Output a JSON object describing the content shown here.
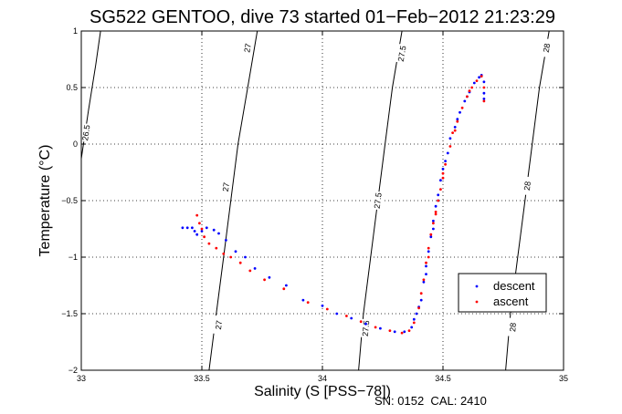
{
  "chart_data": {
    "type": "scatter",
    "title": "SG522 GENTOO, dive 73 started 01−Feb−2012 21:23:29",
    "xlabel": "Salinity (S [PSS−78])",
    "ylabel": "Temperature (°C)",
    "xlim": [
      33,
      35
    ],
    "ylim": [
      -2,
      1
    ],
    "xticks": [
      33,
      33.5,
      34,
      34.5,
      35
    ],
    "xtick_labels": [
      "33",
      "33.5",
      "34",
      "34.5",
      "35"
    ],
    "yticks": [
      -2,
      -1.5,
      -1,
      -0.5,
      0,
      0.5,
      1
    ],
    "ytick_labels": [
      "−2",
      "−1.5",
      "−1",
      "−0.5",
      "0",
      "0.5",
      "1"
    ],
    "grid": true,
    "legend_position": "lower-right",
    "footer": "SN: 0152  CAL: 2410",
    "colors": {
      "descent": "#0000ff",
      "ascent": "#ff0000",
      "contour": "#000000"
    },
    "isopycnals": [
      {
        "label": "26.5",
        "points": [
          [
            33.0,
            -0.13
          ],
          [
            33.03,
            0.3
          ],
          [
            33.06,
            0.7
          ],
          [
            33.08,
            1.0
          ]
        ],
        "label_positions": [
          [
            33.02,
            0.1
          ]
        ]
      },
      {
        "label": "27",
        "points": [
          [
            33.53,
            -2.0
          ],
          [
            33.56,
            -1.5
          ],
          [
            33.59,
            -1.0
          ],
          [
            33.62,
            -0.5
          ],
          [
            33.65,
            0.0
          ],
          [
            33.69,
            0.5
          ],
          [
            33.73,
            1.0
          ]
        ],
        "label_positions": [
          [
            33.57,
            -1.6
          ],
          [
            33.6,
            -0.38
          ],
          [
            33.69,
            0.85
          ]
        ]
      },
      {
        "label": "27.5",
        "points": [
          [
            34.15,
            -2.0
          ],
          [
            34.17,
            -1.5
          ],
          [
            34.2,
            -1.0
          ],
          [
            34.23,
            -0.5
          ],
          [
            34.26,
            0.0
          ],
          [
            34.29,
            0.5
          ],
          [
            34.33,
            1.0
          ]
        ],
        "label_positions": [
          [
            34.18,
            -1.63
          ],
          [
            34.23,
            -0.5
          ],
          [
            34.33,
            0.8
          ]
        ]
      },
      {
        "label": "28",
        "points": [
          [
            34.76,
            -2.0
          ],
          [
            34.78,
            -1.5
          ],
          [
            34.81,
            -1.0
          ],
          [
            34.84,
            -0.5
          ],
          [
            34.87,
            0.0
          ],
          [
            34.9,
            0.5
          ],
          [
            34.94,
            1.0
          ]
        ],
        "label_positions": [
          [
            34.79,
            -1.62
          ],
          [
            34.85,
            -0.37
          ],
          [
            34.93,
            0.85
          ]
        ]
      }
    ],
    "series": [
      {
        "name": "descent",
        "points": [
          [
            33.42,
            -0.74
          ],
          [
            33.44,
            -0.74
          ],
          [
            33.46,
            -0.74
          ],
          [
            33.47,
            -0.77
          ],
          [
            33.48,
            -0.8
          ],
          [
            33.5,
            -0.77
          ],
          [
            33.52,
            -0.74
          ],
          [
            33.55,
            -0.76
          ],
          [
            33.57,
            -0.79
          ],
          [
            33.6,
            -0.85
          ],
          [
            33.64,
            -0.95
          ],
          [
            33.68,
            -1.0
          ],
          [
            33.72,
            -1.1
          ],
          [
            33.78,
            -1.18
          ],
          [
            33.85,
            -1.25
          ],
          [
            33.92,
            -1.38
          ],
          [
            34.0,
            -1.43
          ],
          [
            34.06,
            -1.5
          ],
          [
            34.12,
            -1.54
          ],
          [
            34.18,
            -1.59
          ],
          [
            34.24,
            -1.63
          ],
          [
            34.3,
            -1.66
          ],
          [
            34.34,
            -1.66
          ],
          [
            34.37,
            -1.62
          ],
          [
            34.39,
            -1.5
          ],
          [
            34.41,
            -1.38
          ],
          [
            34.42,
            -1.22
          ],
          [
            34.43,
            -1.08
          ],
          [
            34.44,
            -0.95
          ],
          [
            34.45,
            -0.82
          ],
          [
            34.46,
            -0.68
          ],
          [
            34.47,
            -0.55
          ],
          [
            34.48,
            -0.45
          ],
          [
            34.49,
            -0.32
          ],
          [
            34.5,
            -0.22
          ],
          [
            34.52,
            -0.08
          ],
          [
            34.53,
            0.05
          ],
          [
            34.55,
            0.15
          ],
          [
            34.57,
            0.28
          ],
          [
            34.59,
            0.38
          ],
          [
            34.61,
            0.46
          ],
          [
            34.63,
            0.54
          ],
          [
            34.65,
            0.59
          ],
          [
            34.66,
            0.61
          ],
          [
            34.67,
            0.55
          ],
          [
            34.67,
            0.45
          ],
          [
            34.67,
            0.4
          ],
          [
            34.38,
            -1.55
          ],
          [
            34.4,
            -1.44
          ],
          [
            34.43,
            -1.15
          ],
          [
            34.46,
            -0.75
          ],
          [
            34.48,
            -0.5
          ],
          [
            34.51,
            -0.15
          ],
          [
            34.56,
            0.22
          ],
          [
            34.6,
            0.42
          ]
        ]
      },
      {
        "name": "ascent",
        "points": [
          [
            33.48,
            -0.63
          ],
          [
            33.49,
            -0.7
          ],
          [
            33.5,
            -0.75
          ],
          [
            33.51,
            -0.82
          ],
          [
            33.53,
            -0.88
          ],
          [
            33.56,
            -0.92
          ],
          [
            33.59,
            -0.97
          ],
          [
            33.62,
            -1.0
          ],
          [
            33.66,
            -1.05
          ],
          [
            33.7,
            -1.12
          ],
          [
            33.76,
            -1.2
          ],
          [
            33.84,
            -1.28
          ],
          [
            33.94,
            -1.4
          ],
          [
            34.02,
            -1.46
          ],
          [
            34.1,
            -1.52
          ],
          [
            34.16,
            -1.57
          ],
          [
            34.22,
            -1.62
          ],
          [
            34.28,
            -1.65
          ],
          [
            34.33,
            -1.67
          ],
          [
            34.36,
            -1.65
          ],
          [
            34.38,
            -1.58
          ],
          [
            34.4,
            -1.45
          ],
          [
            34.41,
            -1.32
          ],
          [
            34.42,
            -1.2
          ],
          [
            34.43,
            -1.05
          ],
          [
            34.44,
            -0.92
          ],
          [
            34.45,
            -0.8
          ],
          [
            34.46,
            -0.7
          ],
          [
            34.47,
            -0.6
          ],
          [
            34.48,
            -0.5
          ],
          [
            34.49,
            -0.4
          ],
          [
            34.5,
            -0.3
          ],
          [
            34.51,
            -0.18
          ],
          [
            34.53,
            -0.02
          ],
          [
            34.54,
            0.1
          ],
          [
            34.56,
            0.2
          ],
          [
            34.58,
            0.32
          ],
          [
            34.6,
            0.42
          ],
          [
            34.62,
            0.5
          ],
          [
            34.64,
            0.56
          ],
          [
            34.66,
            0.6
          ],
          [
            34.67,
            0.5
          ],
          [
            34.67,
            0.38
          ],
          [
            34.44,
            -1.0
          ],
          [
            34.47,
            -0.62
          ],
          [
            34.5,
            -0.26
          ],
          [
            34.55,
            0.12
          ],
          [
            34.61,
            0.47
          ]
        ]
      }
    ]
  }
}
